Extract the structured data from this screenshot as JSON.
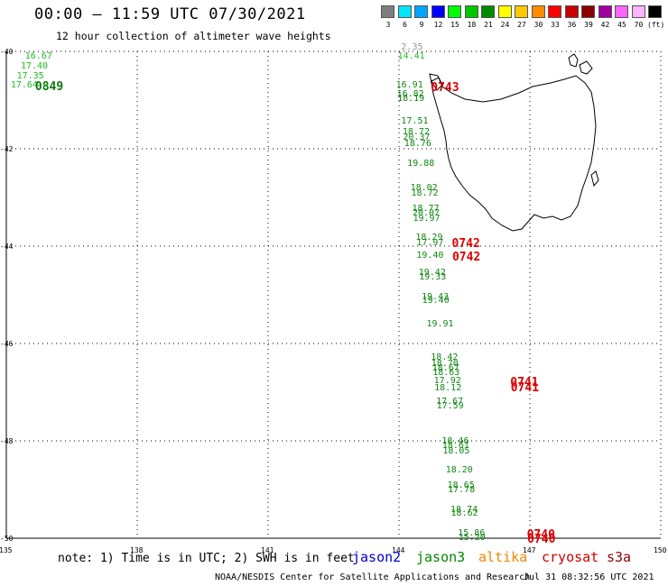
{
  "header": {
    "title": "00:00 – 11:59 UTC 07/30/2021",
    "subtitle": "12 hour collection of altimeter wave heights"
  },
  "legend": {
    "colors": [
      "#7f7f7f",
      "#00e5ff",
      "#00a5ff",
      "#0000ff",
      "#00ff00",
      "#00c800",
      "#008c00",
      "#ffff00",
      "#ffc800",
      "#ff8c00",
      "#ff0000",
      "#c80000",
      "#8c0000",
      "#a000a0",
      "#ff64ff",
      "#ffb4ff",
      "#000000"
    ],
    "labels": [
      "3",
      "6",
      "9",
      "12",
      "15",
      "18",
      "21",
      "24",
      "27",
      "30",
      "33",
      "36",
      "39",
      "42",
      "45",
      "70",
      "(ft)"
    ]
  },
  "axes": {
    "lat_labels": [
      "-40",
      "-42",
      "-44",
      "-46",
      "-48",
      "-50"
    ],
    "lon_labels": [
      "135",
      "138",
      "141",
      "144",
      "147",
      "150"
    ]
  },
  "wave_labels": [
    {
      "text": "16.67",
      "lon": 135.43,
      "lat": -40.12,
      "c": "green1"
    },
    {
      "text": "17.40",
      "lon": 135.33,
      "lat": -40.32,
      "c": "green1"
    },
    {
      "text": "17.35",
      "lon": 135.24,
      "lat": -40.51,
      "c": "green1"
    },
    {
      "text": "17.64",
      "lon": 135.1,
      "lat": -40.7,
      "c": "green1"
    },
    {
      "text": "2.35",
      "lon": 144.05,
      "lat": -39.92,
      "c": "grey"
    },
    {
      "text": "14.41",
      "lon": 143.97,
      "lat": -40.12,
      "c": "green1"
    },
    {
      "text": "16.91",
      "lon": 143.93,
      "lat": -40.7,
      "c": "green2"
    },
    {
      "text": "16.82",
      "lon": 143.95,
      "lat": -40.88,
      "c": "green2"
    },
    {
      "text": "18.19",
      "lon": 143.96,
      "lat": -40.98,
      "c": "green2"
    },
    {
      "text": "17.51",
      "lon": 144.05,
      "lat": -41.44,
      "c": "green2"
    },
    {
      "text": "18.72",
      "lon": 144.08,
      "lat": -41.66,
      "c": "green2"
    },
    {
      "text": "20.37",
      "lon": 144.09,
      "lat": -41.78,
      "c": "green2"
    },
    {
      "text": "18.76",
      "lon": 144.12,
      "lat": -41.9,
      "c": "green2"
    },
    {
      "text": "19.88",
      "lon": 144.19,
      "lat": -42.31,
      "c": "green2"
    },
    {
      "text": "18.02",
      "lon": 144.26,
      "lat": -42.82,
      "c": "green2"
    },
    {
      "text": "18.72",
      "lon": 144.28,
      "lat": -42.92,
      "c": "green2"
    },
    {
      "text": "18.77",
      "lon": 144.3,
      "lat": -43.24,
      "c": "green2"
    },
    {
      "text": "20.07",
      "lon": 144.31,
      "lat": -43.34,
      "c": "green2"
    },
    {
      "text": "19.97",
      "lon": 144.32,
      "lat": -43.44,
      "c": "green2"
    },
    {
      "text": "18.29",
      "lon": 144.38,
      "lat": -43.84,
      "c": "green2"
    },
    {
      "text": "17.97",
      "lon": 144.4,
      "lat": -43.94,
      "c": "green2"
    },
    {
      "text": "19.40",
      "lon": 144.4,
      "lat": -44.2,
      "c": "green2"
    },
    {
      "text": "19.42",
      "lon": 144.45,
      "lat": -44.55,
      "c": "green2"
    },
    {
      "text": "19.33",
      "lon": 144.46,
      "lat": -44.65,
      "c": "green2"
    },
    {
      "text": "19.43",
      "lon": 144.52,
      "lat": -45.05,
      "c": "green2"
    },
    {
      "text": "19.40",
      "lon": 144.53,
      "lat": -45.13,
      "c": "green2"
    },
    {
      "text": "19.91",
      "lon": 144.63,
      "lat": -45.62,
      "c": "green2"
    },
    {
      "text": "18.42",
      "lon": 144.73,
      "lat": -46.3,
      "c": "green2"
    },
    {
      "text": "18.70",
      "lon": 144.74,
      "lat": -46.42,
      "c": "green2"
    },
    {
      "text": "18.67",
      "lon": 144.76,
      "lat": -46.52,
      "c": "green2"
    },
    {
      "text": "18.63",
      "lon": 144.77,
      "lat": -46.62,
      "c": "green2"
    },
    {
      "text": "17.92",
      "lon": 144.8,
      "lat": -46.78,
      "c": "green2"
    },
    {
      "text": "18.12",
      "lon": 144.81,
      "lat": -46.92,
      "c": "green2"
    },
    {
      "text": "17.67",
      "lon": 144.85,
      "lat": -47.2,
      "c": "green2"
    },
    {
      "text": "17.59",
      "lon": 144.86,
      "lat": -47.3,
      "c": "green2"
    },
    {
      "text": "18.46",
      "lon": 144.98,
      "lat": -48.02,
      "c": "green2"
    },
    {
      "text": "18.61",
      "lon": 144.99,
      "lat": -48.12,
      "c": "green2"
    },
    {
      "text": "18.05",
      "lon": 145.0,
      "lat": -48.22,
      "c": "green2"
    },
    {
      "text": "18.20",
      "lon": 145.07,
      "lat": -48.62,
      "c": "green2"
    },
    {
      "text": "18.65",
      "lon": 145.11,
      "lat": -48.92,
      "c": "green2"
    },
    {
      "text": "17.78",
      "lon": 145.12,
      "lat": -49.02,
      "c": "green2"
    },
    {
      "text": "18.74",
      "lon": 145.18,
      "lat": -49.42,
      "c": "green2"
    },
    {
      "text": "18.62",
      "lon": 145.19,
      "lat": -49.5,
      "c": "green2"
    },
    {
      "text": "15.86",
      "lon": 145.35,
      "lat": -49.9,
      "c": "green2"
    },
    {
      "text": "15.20",
      "lon": 145.36,
      "lat": -50.0,
      "c": "green2"
    }
  ],
  "time_labels": [
    {
      "text": "0849",
      "lon": 135.66,
      "lat": -40.7,
      "c": "dgreen"
    },
    {
      "text": "0743",
      "lon": 144.73,
      "lat": -40.72,
      "c": "red"
    },
    {
      "text": "0742",
      "lon": 145.21,
      "lat": -43.92,
      "c": "red"
    },
    {
      "text": "0742",
      "lon": 145.22,
      "lat": -44.2,
      "c": "red"
    },
    {
      "text": "0741",
      "lon": 146.55,
      "lat": -46.78,
      "c": "red"
    },
    {
      "text": "0741",
      "lon": 146.56,
      "lat": -46.88,
      "c": "red"
    },
    {
      "text": "0740",
      "lon": 146.93,
      "lat": -49.9,
      "c": "red"
    },
    {
      "text": "0740",
      "lon": 146.94,
      "lat": -50.0,
      "c": "red"
    }
  ],
  "footer": {
    "note": "note: 1) Time is in UTC; 2) SWH is in feet",
    "missions": [
      {
        "name": "jason2",
        "color": "#0000cc"
      },
      {
        "name": "jason3",
        "color": "#008800"
      },
      {
        "name": "altika",
        "color": "#ee8800"
      },
      {
        "name": "cryosat",
        "color": "#cc0000"
      },
      {
        "name": "s3a",
        "color": "#8b0000"
      }
    ],
    "credit": "NOAA/NESDIS Center for Satellite Applications and Research",
    "timestamp": "Jul 31 08:32:56 UTC 2021"
  }
}
